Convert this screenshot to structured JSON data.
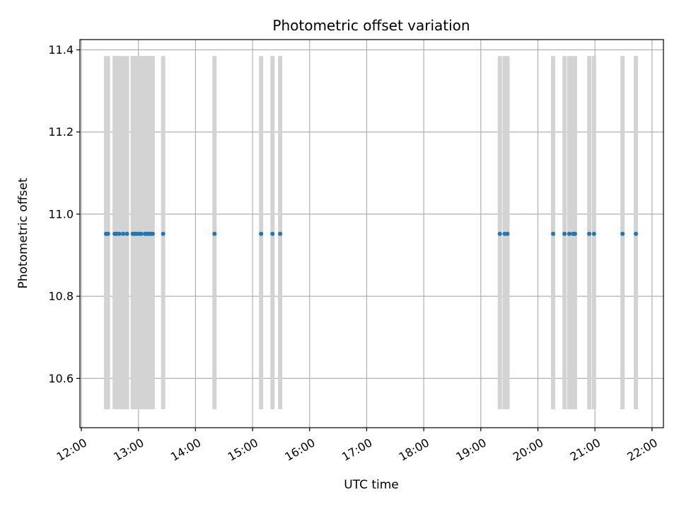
{
  "chart_data": {
    "type": "scatter",
    "title": "Photometric offset variation",
    "xlabel": "UTC time",
    "ylabel": "Photometric offset",
    "x_range_hours": [
      11.975,
      22.2
    ],
    "ylim": [
      10.48,
      11.425
    ],
    "x_ticks": [
      "12:00",
      "13:00",
      "14:00",
      "15:00",
      "16:00",
      "17:00",
      "18:00",
      "19:00",
      "20:00",
      "21:00",
      "22:00"
    ],
    "y_ticks": [
      "10.6",
      "10.8",
      "11.0",
      "11.2",
      "11.4"
    ],
    "grid": true,
    "colors": {
      "points": "#1f77b4",
      "bands": "#d3d3d3",
      "grid": "#b0b0b0"
    },
    "bands": {
      "y_range": [
        10.525,
        11.385
      ],
      "times": [
        "12:26",
        "12:28",
        "12:35",
        "12:37",
        "12:40",
        "12:44",
        "12:48",
        "12:54",
        "12:56",
        "12:58",
        "13:01",
        "13:03",
        "13:07",
        "13:09",
        "13:11",
        "13:13",
        "13:15",
        "13:26",
        "14:20",
        "15:09",
        "15:21",
        "15:29",
        "19:20",
        "19:25",
        "19:28",
        "20:16",
        "20:28",
        "20:33",
        "20:37",
        "20:39",
        "20:54",
        "20:59",
        "21:29",
        "21:43"
      ]
    },
    "series": [
      {
        "x": [
          "12:26",
          "12:28",
          "12:35",
          "12:37",
          "12:40",
          "12:44",
          "12:48",
          "12:54",
          "12:56",
          "12:58",
          "13:01",
          "13:03",
          "13:07",
          "13:09",
          "13:11",
          "13:13",
          "13:15",
          "13:26",
          "14:20",
          "15:09",
          "15:21",
          "15:29",
          "19:20",
          "19:25",
          "19:28",
          "20:16",
          "20:28",
          "20:33",
          "20:37",
          "20:39",
          "20:54",
          "20:59",
          "21:29",
          "21:43"
        ],
        "y": [
          10.952,
          10.952,
          10.952,
          10.952,
          10.952,
          10.952,
          10.952,
          10.952,
          10.952,
          10.952,
          10.952,
          10.952,
          10.952,
          10.952,
          10.952,
          10.952,
          10.952,
          10.952,
          10.952,
          10.952,
          10.952,
          10.952,
          10.952,
          10.952,
          10.952,
          10.952,
          10.952,
          10.952,
          10.952,
          10.952,
          10.952,
          10.952,
          10.952,
          10.952
        ]
      }
    ]
  }
}
